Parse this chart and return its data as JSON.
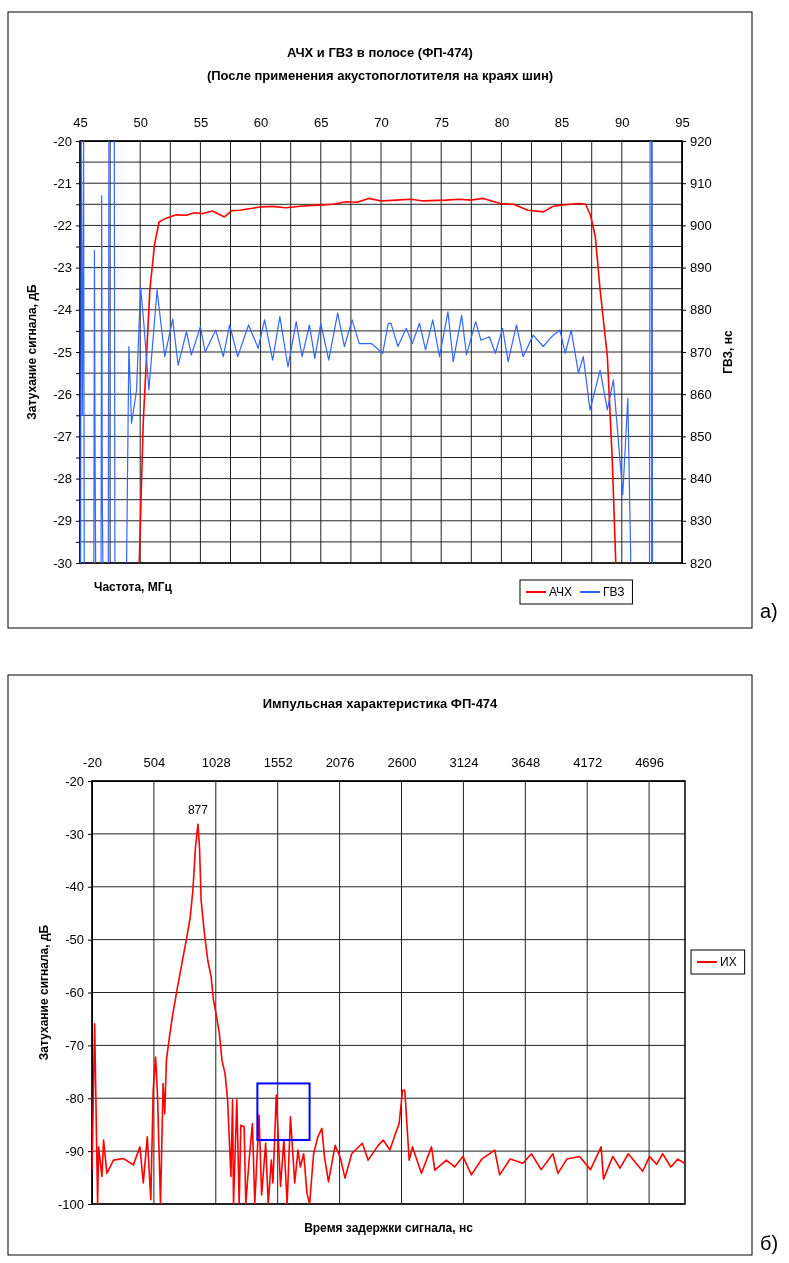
{
  "chart_data": [
    {
      "type": "line",
      "title": "АЧХ и ГВЗ в полосе (ФП-474)",
      "subtitle": "(После применения акустопоглотителя на краях шин)",
      "xlabel": "Частота, МГц",
      "ylabel": "Затухание сигнала, дБ",
      "y2label": "ГВЗ, нс",
      "xlim": [
        45,
        95
      ],
      "xticks": [
        45,
        {
          "value": 47.5,
          "label": null
        },
        50,
        {
          "value": 52.5,
          "label": null
        },
        55,
        {
          "value": 57.5,
          "label": null
        },
        60,
        {
          "value": 62.5,
          "label": null
        },
        65,
        {
          "value": 67.5,
          "label": null
        },
        70,
        {
          "value": 72.5,
          "label": null
        },
        75,
        {
          "value": 77.5,
          "label": null
        },
        80,
        {
          "value": 82.5,
          "label": null
        },
        85,
        {
          "value": 87.5,
          "label": null
        },
        90,
        {
          "value": 92.5,
          "label": null
        },
        95
      ],
      "ylim": [
        -30,
        -20
      ],
      "yticks": [
        -30,
        {
          "value": -29.5,
          "label": null
        },
        -29,
        {
          "value": -28.5,
          "label": null
        },
        -28,
        {
          "value": -27.5,
          "label": null
        },
        -27,
        {
          "value": -26.5,
          "label": null
        },
        -26,
        {
          "value": -25.5,
          "label": null
        },
        -25,
        {
          "value": -24.5,
          "label": null
        },
        -24,
        {
          "value": -23.5,
          "label": null
        },
        -23,
        {
          "value": -22.5,
          "label": null
        },
        -22,
        {
          "value": -21.5,
          "label": null
        },
        -21,
        {
          "value": -20.5,
          "label": null
        },
        -20
      ],
      "y2lim": [
        820,
        920
      ],
      "y2ticks": [
        820,
        830,
        840,
        850,
        860,
        870,
        880,
        890,
        900,
        910,
        920
      ],
      "grid": true,
      "legend": "bottom right",
      "line_style": "solid",
      "marker": "none",
      "annotations": [
        "а)"
      ],
      "series": [
        {
          "name": "АЧХ",
          "color": "#ff0000",
          "x": [
            49.92,
            50.25,
            50.8,
            51.2,
            51.57,
            52.0,
            52.46,
            53.0,
            53.84,
            54.5,
            55.2,
            56.0,
            57.0,
            57.6,
            58.26,
            59.2,
            60.06,
            61.0,
            62.1,
            63.5,
            64.9,
            66.0,
            67.1,
            68.0,
            69.0,
            70.0,
            71.25,
            72.5,
            73.5,
            75.4,
            76.5,
            77.5,
            78.5,
            79.9,
            81.0,
            82.2,
            83.5,
            84.2,
            84.9,
            85.7,
            86.5,
            87.0,
            87.4,
            87.8,
            88.2,
            88.8,
            89.2,
            89.5
          ],
          "values": [
            -30,
            -26.69,
            -23.53,
            -22.43,
            -21.92,
            -21.85,
            -21.8,
            -21.75,
            -21.76,
            -21.7,
            -21.72,
            -21.66,
            -21.8,
            -21.65,
            -21.64,
            -21.6,
            -21.56,
            -21.55,
            -21.58,
            -21.54,
            -21.52,
            -21.5,
            -21.44,
            -21.45,
            -21.36,
            -21.42,
            -21.4,
            -21.38,
            -21.42,
            -21.4,
            -21.38,
            -21.4,
            -21.36,
            -21.48,
            -21.5,
            -21.64,
            -21.68,
            -21.56,
            -21.52,
            -21.5,
            -21.48,
            -21.5,
            -21.76,
            -22.27,
            -23.53,
            -25.1,
            -27.5,
            -30
          ]
        },
        {
          "name": "ГВЗ",
          "color": "#3366ff",
          "axis": "y2",
          "x": [
            45.05,
            45.1,
            45.2,
            45.3,
            45.35,
            45.7,
            46.15,
            46.2,
            46.25,
            46.3,
            46.5,
            46.75,
            46.8,
            46.85,
            46.9,
            47.1,
            47.35,
            47.4,
            47.6,
            47.85,
            47.9,
            48.4,
            48.87,
            49.06,
            49.28,
            49.7,
            50.03,
            50.3,
            50.72,
            51.4,
            52.04,
            52.7,
            53.15,
            53.84,
            54.25,
            55.0,
            55.4,
            56.27,
            56.9,
            57.43,
            58.1,
            59.0,
            59.8,
            60.33,
            61.0,
            61.6,
            62.27,
            62.96,
            63.45,
            64.06,
            64.5,
            65.0,
            65.66,
            66.4,
            66.96,
            67.6,
            68.2,
            69.2,
            70.14,
            70.6,
            70.83,
            71.4,
            72.1,
            72.6,
            73.2,
            73.7,
            74.3,
            74.86,
            75.56,
            76.0,
            76.7,
            77.1,
            77.86,
            78.3,
            79.0,
            79.5,
            80.1,
            80.56,
            81.25,
            81.8,
            82.64,
            83.47,
            84.17,
            84.86,
            85.3,
            85.8,
            86.4,
            86.8,
            87.36,
            88.2,
            88.8,
            89.3,
            90.08,
            90.5,
            90.75,
            91.5,
            92.3,
            92.35,
            92.42,
            92.5,
            92.55
          ],
          "values": [
            820,
            920,
            855,
            920,
            820,
            null,
            820,
            894,
            846,
            820,
            null,
            820,
            907,
            836,
            820,
            null,
            820,
            920,
            null,
            920,
            820,
            null,
            820,
            871.3,
            853.1,
            861,
            885.5,
            876.8,
            861,
            884.7,
            868.9,
            877.8,
            866.9,
            874.8,
            869.3,
            876,
            870,
            875.2,
            868.9,
            876.4,
            868.9,
            876.4,
            870.9,
            877.6,
            868.1,
            878.4,
            866.5,
            877.2,
            868.9,
            876.4,
            868.5,
            876.8,
            868.1,
            879.2,
            871.3,
            877.6,
            872,
            872,
            869.7,
            876.8,
            876.8,
            871.3,
            875.6,
            872,
            876.8,
            870.5,
            877.6,
            868.9,
            879.5,
            867.7,
            878.7,
            869.3,
            877.2,
            872.8,
            873.6,
            869.7,
            875.6,
            867.7,
            876.4,
            868.9,
            874,
            871.3,
            873.6,
            875.2,
            869.7,
            875.2,
            865,
            868.9,
            856.3,
            865.7,
            856.3,
            863.4,
            836.2,
            859,
            820,
            null,
            820,
            920,
            null,
            920,
            820
          ]
        }
      ]
    },
    {
      "type": "line",
      "title": "Импульсная характеристика ФП-474",
      "xlabel": "Время задержки сигнала, нс",
      "ylabel": "Затухание сигнала, дБ",
      "xlim": [
        -20,
        5000
      ],
      "xticks": [
        -20,
        504,
        1028,
        1552,
        2076,
        2600,
        3124,
        3648,
        4172,
        4696
      ],
      "ylim": [
        -100,
        -20
      ],
      "yticks": [
        -100,
        -90,
        -80,
        -70,
        -60,
        -50,
        -40,
        -30,
        -20
      ],
      "grid": true,
      "legend": "right",
      "line_style": "solid",
      "marker": "none",
      "annotations": [
        {
          "text": "877",
          "x": 877,
          "y": -28.2
        },
        "б)"
      ],
      "series": [
        {
          "name": "ИХ",
          "color": "#ff0000",
          "x": [
            -20,
            2.4,
            27.6,
            36,
            64,
            78,
            106,
            162,
            246,
            330,
            386,
            414,
            448,
            478,
            498,
            518,
            534,
            560,
            582,
            596,
            610,
            632,
            660,
            694,
            736,
            778,
            812,
            834,
            856,
            877,
            890,
            904,
            932,
            960,
            988,
            1008,
            1030,
            1058,
            1080,
            1106,
            1128,
            1156,
            1170,
            1178,
            1206,
            1226,
            1240,
            1268,
            1282,
            1310,
            1338,
            1358,
            1394,
            1416,
            1450,
            1472,
            1498,
            1512,
            1540,
            1576,
            1604,
            1632,
            1660,
            1696,
            1724,
            1744,
            1772,
            1800,
            1822,
            1856,
            1892,
            1926,
            1948,
            1982,
            2038,
            2080,
            2122,
            2178,
            2268,
            2318,
            2400,
            2445,
            2502,
            2544,
            2580,
            2609,
            2628,
            2665,
            2693,
            2769,
            2854,
            2882,
            2980,
            3050,
            3120,
            3192,
            3280,
            3389,
            3431,
            3520,
            3628,
            3700,
            3782,
            3882,
            3924,
            4000,
            4107,
            4200,
            4290,
            4310,
            4389,
            4450,
            4520,
            4642,
            4700,
            4760,
            4811,
            4880,
            4940,
            4995
          ],
          "values": [
            -93.6,
            -65.9,
            -100,
            -89.2,
            -94.8,
            -87.9,
            -94.2,
            -91.7,
            -91.4,
            -92.6,
            -89.2,
            -96,
            -87.3,
            -99.2,
            -78.5,
            -72.2,
            -79.1,
            -100,
            -77.2,
            -82.9,
            -72.8,
            -69,
            -64.6,
            -60.2,
            -55.1,
            -50.1,
            -45.7,
            -40.7,
            -32.5,
            -28.2,
            -32.5,
            -42.6,
            -48.9,
            -53.9,
            -57,
            -61.4,
            -64,
            -67.7,
            -72.8,
            -75.3,
            -80.3,
            -94.8,
            -80.3,
            -100,
            -80.3,
            -100,
            -85.1,
            -85.4,
            -100,
            -91.7,
            -84.8,
            -100,
            -83.2,
            -98.3,
            -88.5,
            -100,
            -91.7,
            -96,
            -79.4,
            -96.7,
            -87.9,
            -100,
            -83.5,
            -96,
            -89.8,
            -93,
            -90.5,
            -98,
            -100,
            -90.5,
            -87.3,
            -85.7,
            -91.1,
            -95.8,
            -88.9,
            -91.1,
            -95.1,
            -90.5,
            -88.5,
            -91.7,
            -89,
            -87.9,
            -89.8,
            -87,
            -84.8,
            -78.5,
            -78.5,
            -91.7,
            -89.2,
            -94.2,
            -89.2,
            -93.6,
            -91.7,
            -93,
            -91,
            -94.5,
            -91.5,
            -89.8,
            -94.5,
            -91.5,
            -92.3,
            -90.5,
            -93.5,
            -90.5,
            -94.2,
            -91.5,
            -91,
            -93.5,
            -89.2,
            -95.3,
            -91,
            -93.2,
            -90.5,
            -93.8,
            -91,
            -92.5,
            -90.5,
            -93,
            -91.5,
            -92.3
          ]
        }
      ]
    }
  ]
}
